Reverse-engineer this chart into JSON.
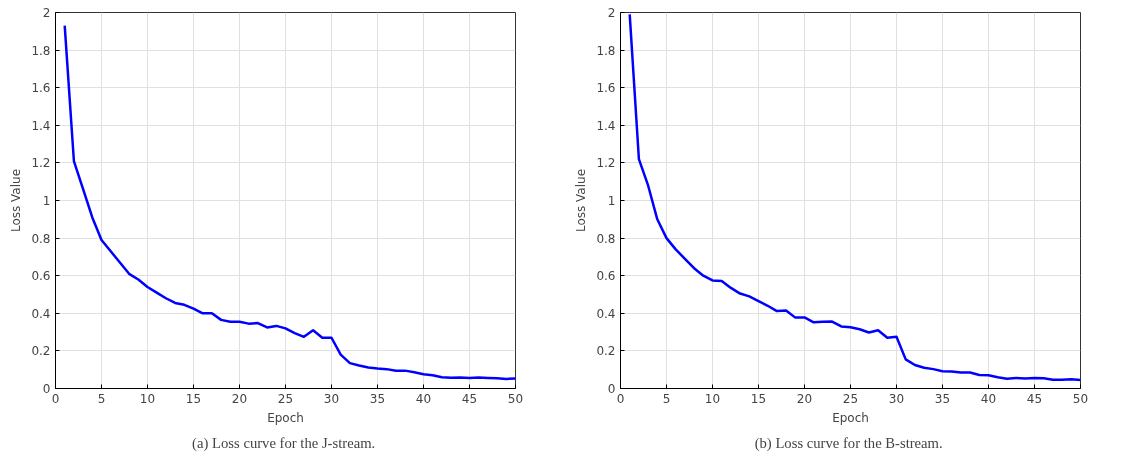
{
  "chart_data": [
    {
      "type": "line",
      "xlabel": "Epoch",
      "ylabel": "Loss Value",
      "annotations": [
        "(a)  Loss curve for the J-stream."
      ],
      "x": [
        1,
        2,
        3,
        4,
        5,
        6,
        7,
        8,
        9,
        10,
        11,
        12,
        13,
        14,
        15,
        16,
        17,
        18,
        19,
        20,
        21,
        22,
        23,
        24,
        25,
        26,
        27,
        28,
        29,
        30,
        31,
        32,
        33,
        34,
        35,
        36,
        37,
        38,
        39,
        40,
        41,
        42,
        43,
        44,
        45,
        46,
        47,
        48,
        49,
        50
      ],
      "series": [
        {
          "color": "#0000ff",
          "values": [
            1.93,
            1.21,
            1.06,
            0.91,
            0.79,
            0.73,
            0.67,
            0.61,
            0.58,
            0.54,
            0.51,
            0.48,
            0.455,
            0.445,
            0.425,
            0.4,
            0.4,
            0.365,
            0.355,
            0.355,
            0.345,
            0.348,
            0.325,
            0.333,
            0.32,
            0.295,
            0.275,
            0.31,
            0.27,
            0.27,
            0.18,
            0.135,
            0.122,
            0.112,
            0.106,
            0.103,
            0.094,
            0.095,
            0.086,
            0.076,
            0.07,
            0.06,
            0.057,
            0.058,
            0.056,
            0.058,
            0.056,
            0.055,
            0.051,
            0.053
          ]
        }
      ],
      "xlim": [
        0,
        50
      ],
      "ylim": [
        0,
        2
      ],
      "xticks": [
        0,
        5,
        10,
        15,
        20,
        25,
        30,
        35,
        40,
        45,
        50
      ],
      "yticks": [
        0,
        0.2,
        0.4,
        0.6,
        0.8,
        1,
        1.2,
        1.4,
        1.6,
        1.8,
        2
      ],
      "grid": true,
      "line_style": "solid"
    },
    {
      "type": "line",
      "xlabel": "Epoch",
      "ylabel": "Loss Value",
      "annotations": [
        "(b)  Loss curve for the B-stream."
      ],
      "x": [
        1,
        2,
        3,
        4,
        5,
        6,
        7,
        8,
        9,
        10,
        11,
        12,
        13,
        14,
        15,
        16,
        17,
        18,
        19,
        20,
        21,
        22,
        23,
        24,
        25,
        26,
        27,
        28,
        29,
        30,
        31,
        32,
        33,
        34,
        35,
        36,
        37,
        38,
        39,
        40,
        41,
        42,
        43,
        44,
        45,
        46,
        47,
        48,
        49,
        50
      ],
      "series": [
        {
          "color": "#0000ff",
          "values": [
            1.99,
            1.22,
            1.08,
            0.9,
            0.8,
            0.74,
            0.69,
            0.64,
            0.6,
            0.575,
            0.572,
            0.535,
            0.505,
            0.49,
            0.465,
            0.44,
            0.412,
            0.415,
            0.377,
            0.378,
            0.352,
            0.355,
            0.356,
            0.33,
            0.326,
            0.315,
            0.298,
            0.31,
            0.27,
            0.275,
            0.155,
            0.125,
            0.11,
            0.103,
            0.092,
            0.09,
            0.085,
            0.085,
            0.072,
            0.07,
            0.06,
            0.052,
            0.056,
            0.053,
            0.056,
            0.055,
            0.047,
            0.047,
            0.049,
            0.045
          ]
        }
      ],
      "xlim": [
        0,
        50
      ],
      "ylim": [
        0,
        2
      ],
      "xticks": [
        0,
        5,
        10,
        15,
        20,
        25,
        30,
        35,
        40,
        45,
        50
      ],
      "yticks": [
        0,
        0.2,
        0.4,
        0.6,
        0.8,
        1,
        1.2,
        1.4,
        1.6,
        1.8,
        2
      ],
      "grid": true,
      "line_style": "solid"
    }
  ]
}
